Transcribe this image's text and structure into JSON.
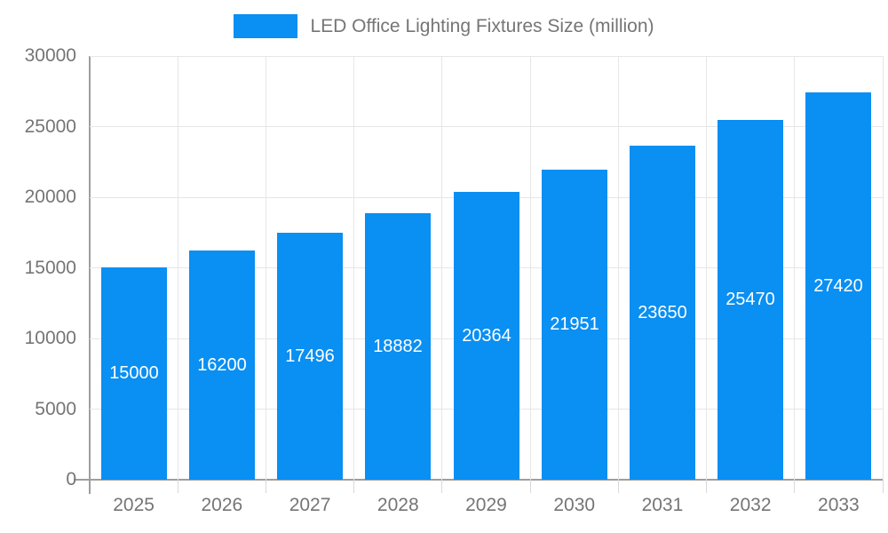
{
  "legend": {
    "series_label": "LED Office Lighting Fixtures Size (million)"
  },
  "chart_data": {
    "type": "bar",
    "title": "LED Office Lighting Fixtures Size (million)",
    "categories": [
      "2025",
      "2026",
      "2027",
      "2028",
      "2029",
      "2030",
      "2031",
      "2032",
      "2033"
    ],
    "values": [
      15000,
      16200,
      17496,
      18882,
      20364,
      21951,
      23650,
      25470,
      27420
    ],
    "series": [
      {
        "name": "LED Office Lighting Fixtures Size (million)",
        "values": [
          15000,
          16200,
          17496,
          18882,
          20364,
          21951,
          23650,
          25470,
          27420
        ]
      }
    ],
    "xlabel": "",
    "ylabel": "",
    "ylim": [
      0,
      30000
    ],
    "yticks": [
      0,
      5000,
      10000,
      15000,
      20000,
      25000,
      30000
    ],
    "grid": true,
    "legend_position": "top-center",
    "value_labels": "inside-center"
  },
  "colors": {
    "bar": "#0a8ff2",
    "value_label_text": "#ffffff",
    "gridline": "#e6e6e6",
    "axis_line": "#9e9e9e",
    "boundary_tick": "#d9d9d9",
    "tick_text": "#757575",
    "legend_text": "#757575",
    "background": "#ffffff"
  }
}
